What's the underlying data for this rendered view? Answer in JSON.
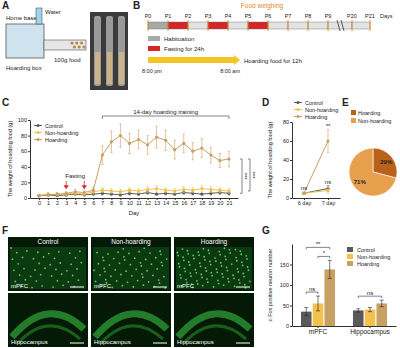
{
  "figure": {
    "panel_labels": [
      "A",
      "B",
      "C",
      "D",
      "E",
      "F",
      "G"
    ],
    "setup": {
      "home_base": "Home base",
      "water": "Water",
      "hoarding_box": "Hoarding box",
      "food": "100g food"
    },
    "timeline": {
      "food_weighing": "Food weighing",
      "days": [
        "P0",
        "P1",
        "P2",
        "P3",
        "P4",
        "P5",
        "P6",
        "P7",
        "P8",
        "P9",
        "P20",
        "P21"
      ],
      "days_label": "Days",
      "habituation": "Habituation",
      "fasting": "Fasting for 24h",
      "hoarding": "Hoarding food for 12h",
      "start_time": "8:00 pm",
      "end_time": "8:00 am"
    },
    "images": {
      "columns": [
        "Control",
        "Non-hoarding",
        "Hoarding"
      ],
      "rows": [
        "mPFC",
        "Hippocampus"
      ]
    }
  },
  "chart_data": [
    {
      "type": "line",
      "x_label": "Day",
      "y_label": "The weight of hoarding food (g)",
      "x": [
        0,
        1,
        2,
        3,
        4,
        5,
        6,
        7,
        8,
        9,
        10,
        11,
        12,
        13,
        14,
        15,
        16,
        17,
        18,
        19,
        20,
        21
      ],
      "xlim": [
        -1,
        22
      ],
      "xticks": [
        0,
        1,
        2,
        3,
        4,
        5,
        6,
        7,
        8,
        9,
        10,
        11,
        12,
        13,
        14,
        15,
        16,
        17,
        18,
        19,
        20,
        21
      ],
      "ylim": [
        0,
        100
      ],
      "yticks": [
        0,
        20,
        40,
        60,
        80,
        100
      ],
      "marker": "circle",
      "legend": "upper left",
      "series": [
        {
          "name": "Control",
          "color": "#5a5a5a",
          "values": [
            3,
            4,
            3,
            4,
            5,
            4,
            5,
            6,
            5,
            4,
            6,
            5,
            7,
            5,
            6,
            5,
            7,
            6,
            5,
            6,
            7,
            6
          ],
          "errors": [
            1,
            1,
            1,
            1,
            1,
            1,
            1,
            2,
            1,
            1,
            2,
            1,
            2,
            1,
            2,
            1,
            2,
            2,
            1,
            2,
            2,
            2
          ]
        },
        {
          "name": "Non-hoarding",
          "color": "#f2c14e",
          "values": [
            3,
            5,
            4,
            5,
            6,
            5,
            8,
            10,
            9,
            8,
            10,
            9,
            11,
            12,
            10,
            9,
            11,
            10,
            12,
            11,
            10,
            9
          ],
          "errors": [
            1,
            2,
            1,
            2,
            2,
            2,
            3,
            3,
            3,
            3,
            3,
            3,
            4,
            4,
            3,
            3,
            4,
            3,
            4,
            4,
            3,
            3
          ]
        },
        {
          "name": "Hoarding",
          "color": "#c9a063",
          "values": [
            3,
            4,
            5,
            6,
            8,
            7,
            10,
            55,
            72,
            80,
            70,
            75,
            68,
            78,
            74,
            62,
            70,
            60,
            64,
            55,
            48,
            50
          ],
          "errors": [
            1,
            1,
            2,
            2,
            3,
            3,
            4,
            12,
            14,
            15,
            13,
            12,
            12,
            14,
            13,
            12,
            12,
            11,
            12,
            10,
            9,
            10
          ]
        }
      ],
      "annotations": [
        {
          "text": "Fasting",
          "x": [
            3,
            5
          ],
          "marker": "arrow"
        },
        {
          "text": "14-day hoarding training",
          "x": [
            7,
            21
          ],
          "marker": "bracket"
        }
      ],
      "significance": [
        "***",
        "***"
      ]
    },
    {
      "type": "line",
      "y_label": "The weight of hoarding food (g)",
      "categories": [
        "6 day",
        "7 day"
      ],
      "ylim": [
        0,
        80
      ],
      "yticks": [
        0,
        20,
        40,
        60,
        80
      ],
      "marker": "circle",
      "legend": "top",
      "series": [
        {
          "name": "Control",
          "color": "#5a5a5a",
          "values": [
            5,
            10
          ],
          "errors": [
            1,
            3
          ]
        },
        {
          "name": "Non-hoarding",
          "color": "#f2c14e",
          "values": [
            5,
            8
          ],
          "errors": [
            1,
            3
          ]
        },
        {
          "name": "Hoarding",
          "color": "#c9a063",
          "values": [
            5,
            60
          ],
          "errors": [
            1,
            12
          ]
        }
      ],
      "annotations": [
        {
          "text": "ns",
          "x": "6 day"
        },
        {
          "text": "ns",
          "x": "7 day"
        },
        {
          "text": "**",
          "x": "7 day"
        }
      ]
    },
    {
      "type": "pie",
      "categories": [
        "Hoarding",
        "Non-hoarding"
      ],
      "values": [
        29,
        71
      ],
      "value_labels": [
        "29%",
        "71%"
      ],
      "colors": [
        "#b8621b",
        "#e8a04e"
      ],
      "data_labels": true,
      "legend": "top"
    },
    {
      "type": "bar",
      "y_label": "c-Fos positive neuron number",
      "categories": [
        "mPFC",
        "Hippocampus"
      ],
      "ylim": [
        0,
        200
      ],
      "yticks": [
        0,
        50,
        100,
        150
      ],
      "legend": "upper right",
      "series": [
        {
          "name": "Control",
          "color": "#5a5a5a",
          "values": [
            35,
            38
          ],
          "errors": [
            10,
            4
          ]
        },
        {
          "name": "Non-hoarding",
          "color": "#f2c14e",
          "values": [
            55,
            40
          ],
          "errors": [
            18,
            5
          ]
        },
        {
          "name": "Hoarding",
          "color": "#c9a063",
          "values": [
            138,
            55
          ],
          "errors": [
            22,
            8
          ]
        }
      ],
      "comparisons": [
        {
          "text": "ns",
          "category": "mPFC",
          "between": [
            "Control",
            "Non-hoarding"
          ]
        },
        {
          "text": "*",
          "category": "mPFC",
          "between": [
            "Non-hoarding",
            "Hoarding"
          ]
        },
        {
          "text": "**",
          "category": "mPFC",
          "between": [
            "Control",
            "Hoarding"
          ]
        },
        {
          "text": "ns",
          "category": "Hippocampus",
          "between": [
            "Control",
            "Hoarding"
          ]
        }
      ]
    }
  ]
}
